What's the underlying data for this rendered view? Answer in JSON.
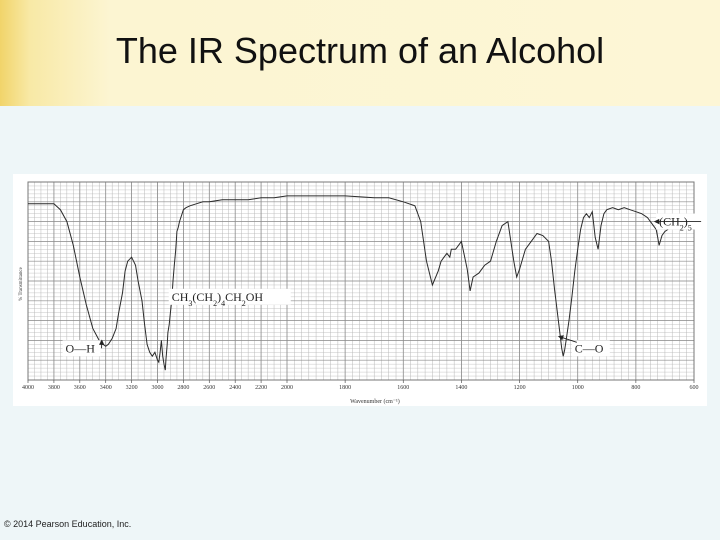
{
  "slide": {
    "title": "The IR Spectrum of an Alcohol",
    "footer": "© 2014 Pearson Education, Inc."
  },
  "chart_data": {
    "type": "line",
    "title": "",
    "xlabel": "Wavenumber (cm⁻¹)",
    "ylabel": "% Transmittance",
    "x_ticks": [
      4000,
      3800,
      3600,
      3400,
      3200,
      3000,
      2800,
      2600,
      2400,
      2200,
      2000,
      1800,
      1600,
      1400,
      1200,
      1000,
      800,
      600
    ],
    "xlim": [
      4000,
      600
    ],
    "ylim": [
      0,
      100
    ],
    "grid": true,
    "colors": {
      "trace": "#2a2a2a",
      "grid": "#b8b8b8",
      "paper": "#ffffff"
    },
    "series": [
      {
        "x": [
          4000,
          3900,
          3800,
          3750,
          3700,
          3650,
          3600,
          3550,
          3500,
          3450,
          3420,
          3400,
          3380,
          3350,
          3320,
          3300,
          3270,
          3250,
          3230,
          3200,
          3170,
          3150,
          3120,
          3100,
          3080,
          3060,
          3040,
          3020,
          3000,
          2990,
          2980,
          2970,
          2960,
          2950,
          2940,
          2935,
          2925,
          2920,
          2910,
          2900,
          2890,
          2880,
          2870,
          2860,
          2855,
          2850,
          2840,
          2830,
          2820,
          2810,
          2800,
          2780,
          2750,
          2700,
          2650,
          2600,
          2500,
          2400,
          2300,
          2200,
          2100,
          2000,
          1900,
          1800,
          1700,
          1650,
          1600,
          1560,
          1540,
          1520,
          1500,
          1480,
          1470,
          1460,
          1450,
          1440,
          1435,
          1420,
          1400,
          1380,
          1370,
          1360,
          1340,
          1320,
          1300,
          1280,
          1260,
          1240,
          1220,
          1210,
          1200,
          1180,
          1160,
          1140,
          1120,
          1100,
          1090,
          1080,
          1070,
          1060,
          1055,
          1050,
          1045,
          1040,
          1030,
          1020,
          1010,
          1000,
          990,
          980,
          970,
          960,
          950,
          940,
          930,
          920,
          910,
          900,
          880,
          860,
          840,
          820,
          800,
          780,
          760,
          750,
          740,
          730,
          725,
          720,
          710,
          700,
          690,
          680,
          660,
          640,
          620,
          600
        ],
        "values": [
          89,
          89,
          89,
          86,
          80,
          68,
          52,
          38,
          26,
          20,
          18,
          17,
          18,
          21,
          26,
          34,
          44,
          55,
          60,
          62,
          58,
          50,
          40,
          28,
          18,
          14,
          12,
          14,
          10,
          9,
          14,
          20,
          12,
          8,
          5,
          10,
          18,
          24,
          28,
          34,
          40,
          50,
          58,
          65,
          70,
          75,
          77,
          80,
          82,
          84,
          86,
          87,
          88,
          89,
          90,
          90,
          91,
          91,
          91,
          92,
          92,
          93,
          93,
          93,
          92,
          92,
          90,
          88,
          80,
          60,
          48,
          55,
          60,
          62,
          64,
          62,
          66,
          66,
          70,
          56,
          45,
          52,
          54,
          58,
          60,
          70,
          78,
          80,
          60,
          52,
          56,
          66,
          70,
          74,
          73,
          70,
          60,
          46,
          34,
          22,
          16,
          12,
          15,
          20,
          30,
          42,
          55,
          66,
          76,
          82,
          84,
          82,
          85,
          72,
          66,
          78,
          84,
          86,
          87,
          86,
          87,
          86,
          85,
          84,
          82,
          80,
          78,
          76,
          72,
          68,
          73,
          75,
          76,
          77,
          78,
          79,
          80,
          80
        ]
      }
    ],
    "annotations": [
      {
        "text": "CH3(CH2)4CH2OH",
        "label_x": 2890,
        "label_y": 40
      },
      {
        "text": "O—H",
        "label_x": 3710,
        "label_y": 14,
        "x": 3430,
        "y": 20
      },
      {
        "text": "C—O",
        "label_x": 1010,
        "label_y": 14,
        "x": 1065,
        "y": 22
      },
      {
        "text": "(CH2)5",
        "label_x": 720,
        "label_y": 78,
        "x": 735,
        "y": 80
      }
    ]
  }
}
